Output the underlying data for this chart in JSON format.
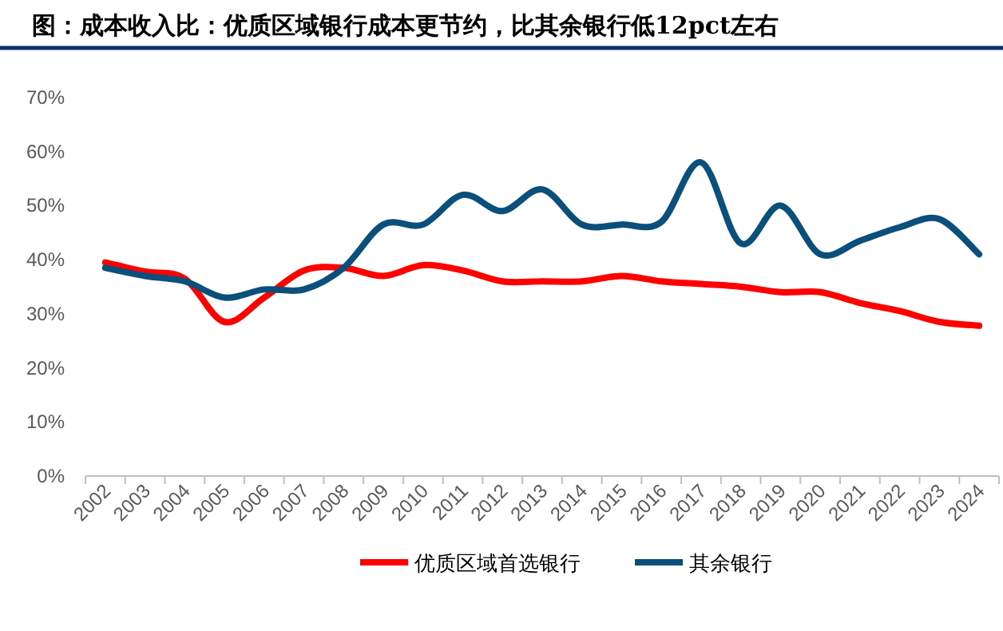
{
  "chart_data": {
    "type": "line",
    "title": "图：成本收入比：优质区域银行成本更节约，比其余银行低12pct左右",
    "categories": [
      "2002",
      "2003",
      "2004",
      "2005",
      "2006",
      "2007",
      "2008",
      "2009",
      "2010",
      "2011",
      "2012",
      "2013",
      "2014",
      "2015",
      "2016",
      "2017",
      "2018",
      "2019",
      "2020",
      "2021",
      "2022",
      "2023",
      "2024"
    ],
    "series": [
      {
        "name": "优质区域首选银行",
        "color": "#ff0000",
        "values": [
          39.5,
          37.8,
          36.5,
          28.5,
          33,
          38,
          38.5,
          37,
          39,
          38,
          36,
          36,
          36,
          37,
          36,
          35.5,
          35,
          34,
          34,
          32,
          30.5,
          28.5,
          27.8
        ]
      },
      {
        "name": "其余银行",
        "color": "#0b4f7c",
        "values": [
          38.5,
          37,
          36,
          33,
          34.5,
          34.5,
          38.5,
          46.5,
          46.5,
          52,
          49,
          53,
          46.5,
          46.5,
          47,
          58,
          43,
          50,
          41,
          43.5,
          46,
          47.5,
          41
        ]
      }
    ],
    "ylim": [
      0,
      70
    ],
    "yticks": [
      {
        "value": 0,
        "label": "0%"
      },
      {
        "value": 10,
        "label": "10%"
      },
      {
        "value": 20,
        "label": "20%"
      },
      {
        "value": 30,
        "label": "30%"
      },
      {
        "value": 40,
        "label": "40%"
      },
      {
        "value": 50,
        "label": "50%"
      },
      {
        "value": 60,
        "label": "60%"
      },
      {
        "value": 70,
        "label": "70%"
      }
    ],
    "legend": "bottom",
    "marker": "none",
    "line_style": "solid",
    "grid": false
  }
}
